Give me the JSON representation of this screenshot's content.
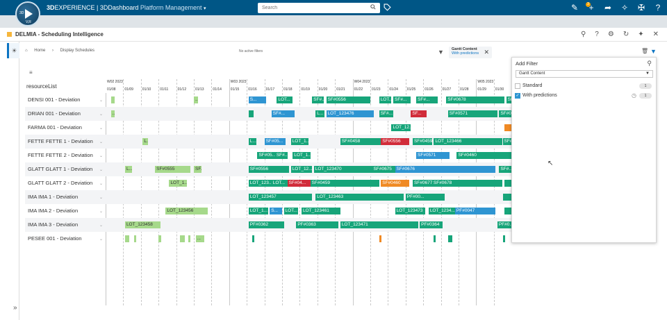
{
  "topbar": {
    "brand_prefix": "3D",
    "brand_experience": "EXPERIENCE",
    "brand_dashboard": " | 3DDashboard ",
    "app": "Platform Management",
    "search_placeholder": "Search",
    "notification_count": "3",
    "compass_top": "3D",
    "compass_bottom": "V,R"
  },
  "widget": {
    "title": "DELMIA - Scheduling Intelligence",
    "breadcrumb": [
      "Home",
      "Display Schedules"
    ],
    "no_filters": "No active filters",
    "filter_chip": {
      "title": "Gantt Content",
      "value": "With predictions"
    }
  },
  "gantt": {
    "resource_header": "resourceList",
    "weeks": [
      "W02 2023",
      "W03 2023",
      "W04 2023",
      "W05 2023"
    ],
    "days": [
      "01/08",
      "01/09",
      "01/10",
      "01/11",
      "01/12",
      "01/13",
      "01/14",
      "01/15",
      "01/16",
      "01/17",
      "01/18",
      "01/19",
      "01/20",
      "01/21",
      "01/22",
      "01/23",
      "01/24",
      "01/25",
      "01/26",
      "01/27",
      "01/28",
      "01/29",
      "01/30"
    ],
    "rows": [
      {
        "label": "DENSI 001 - Deviation",
        "bars": [
          {
            "s": 0.3,
            "w": 0.2,
            "c": "light",
            "t": ""
          },
          {
            "s": 5.0,
            "w": 0.25,
            "c": "light",
            "t": "..."
          },
          {
            "s": 8.1,
            "w": 1.0,
            "c": "blue",
            "t": "S..."
          },
          {
            "s": 9.7,
            "w": 0.9,
            "c": "teal",
            "t": "LOT..."
          },
          {
            "s": 11.7,
            "w": 0.65,
            "c": "teal",
            "t": "SF#..."
          },
          {
            "s": 12.5,
            "w": 2.5,
            "c": "teal",
            "t": "SF#0556"
          },
          {
            "s": 15.5,
            "w": 0.7,
            "c": "teal",
            "t": "LOT..."
          },
          {
            "s": 16.3,
            "w": 1.0,
            "c": "teal",
            "t": "SF#..."
          },
          {
            "s": 17.6,
            "w": 1.2,
            "c": "teal",
            "t": "SF#..."
          },
          {
            "s": 19.3,
            "w": 3.3,
            "c": "teal",
            "t": "SF#0678"
          },
          {
            "s": 22.7,
            "w": 0.9,
            "c": "teal",
            "t": "SF#..."
          }
        ]
      },
      {
        "label": "DRIAN 001 - Deviation",
        "bars": [
          {
            "s": 0.3,
            "w": 0.2,
            "c": "light",
            "t": "..."
          },
          {
            "s": 8.1,
            "w": 0.3,
            "c": "teal",
            "t": ""
          },
          {
            "s": 9.4,
            "w": 1.3,
            "c": "blue",
            "t": "SF#..."
          },
          {
            "s": 11.9,
            "w": 0.5,
            "c": "teal",
            "t": "L..."
          },
          {
            "s": 12.5,
            "w": 2.7,
            "c": "blue",
            "t": "LOT_123476"
          },
          {
            "s": 15.5,
            "w": 0.8,
            "c": "teal",
            "t": "SF#..."
          },
          {
            "s": 17.3,
            "w": 0.9,
            "c": "red",
            "t": "SF..."
          },
          {
            "s": 19.4,
            "w": 2.8,
            "c": "teal",
            "t": "SF#0571"
          },
          {
            "s": 22.3,
            "w": 0.8,
            "c": "teal",
            "t": "SF#0..."
          }
        ]
      },
      {
        "label": "FARMA 001 - Deviation",
        "bars": [
          {
            "s": 16.2,
            "w": 1.1,
            "c": "teal",
            "t": "LOT_12..."
          },
          {
            "s": 22.6,
            "w": 0.6,
            "c": "orange",
            "t": ""
          }
        ]
      },
      {
        "label": "FETTE FETTE 1 - Deviation",
        "bars": [
          {
            "s": 2.1,
            "w": 0.3,
            "c": "light",
            "t": "L..."
          },
          {
            "s": 8.1,
            "w": 0.45,
            "c": "teal",
            "t": "L..."
          },
          {
            "s": 9.0,
            "w": 1.2,
            "c": "blue",
            "t": "SF#05..."
          },
          {
            "s": 10.5,
            "w": 1.0,
            "c": "teal",
            "t": "LOT_1..."
          },
          {
            "s": 13.3,
            "w": 3.1,
            "c": "teal",
            "t": "SF#0458"
          },
          {
            "s": 15.6,
            "w": 1.6,
            "c": "red",
            "t": "SF#0556"
          },
          {
            "s": 17.4,
            "w": 1.1,
            "c": "teal",
            "t": "SF#0459"
          },
          {
            "s": 18.6,
            "w": 3.9,
            "c": "teal",
            "t": "LOT_123466"
          },
          {
            "s": 22.5,
            "w": 0.8,
            "c": "teal",
            "t": "SF#..."
          }
        ]
      },
      {
        "label": "FETTE FETTE 2 - Deviation",
        "bars": [
          {
            "s": 8.6,
            "w": 1.0,
            "c": "teal",
            "t": "SF#05..."
          },
          {
            "s": 9.6,
            "w": 0.7,
            "c": "teal",
            "t": "SF#..."
          },
          {
            "s": 10.6,
            "w": 1.0,
            "c": "teal",
            "t": "LOT_1..."
          },
          {
            "s": 17.6,
            "w": 1.9,
            "c": "blue",
            "t": "SF#0571"
          },
          {
            "s": 19.9,
            "w": 3.3,
            "c": "teal",
            "t": "SF#0460"
          }
        ]
      },
      {
        "label": "GLATT GLATT 1 - Deviation",
        "bars": [
          {
            "s": 1.1,
            "w": 0.4,
            "c": "light",
            "t": "L..."
          },
          {
            "s": 2.8,
            "w": 2.0,
            "c": "light",
            "t": "SF#0555"
          },
          {
            "s": 5.0,
            "w": 0.45,
            "c": "light",
            "t": "SF..."
          },
          {
            "s": 8.1,
            "w": 2.3,
            "c": "teal",
            "t": "SF#0556"
          },
          {
            "s": 10.5,
            "w": 1.2,
            "c": "teal",
            "t": "LOT_12..."
          },
          {
            "s": 11.8,
            "w": 3.3,
            "c": "teal",
            "t": "LOT_123470"
          },
          {
            "s": 15.1,
            "w": 1.3,
            "c": "teal",
            "t": "SF#0675"
          },
          {
            "s": 16.4,
            "w": 5.7,
            "c": "blue",
            "t": "SF#0676"
          },
          {
            "s": 22.3,
            "w": 0.9,
            "c": "teal",
            "t": "SF#..."
          }
        ]
      },
      {
        "label": "GLATT GLATT 2 - Deviation",
        "bars": [
          {
            "s": 3.6,
            "w": 1.0,
            "c": "light",
            "t": "LOT_1..."
          },
          {
            "s": 8.1,
            "w": 1.3,
            "c": "teal",
            "t": "LOT_123..."
          },
          {
            "s": 9.4,
            "w": 0.9,
            "c": "teal",
            "t": "LOT..."
          },
          {
            "s": 10.3,
            "w": 1.3,
            "c": "red",
            "t": "SF#04..."
          },
          {
            "s": 11.6,
            "w": 3.9,
            "c": "teal",
            "t": "SF#0459"
          },
          {
            "s": 15.6,
            "w": 1.6,
            "c": "orange",
            "t": "SF#0460"
          },
          {
            "s": 17.4,
            "w": 1.1,
            "c": "teal",
            "t": "SF#0677"
          },
          {
            "s": 18.5,
            "w": 4.0,
            "c": "teal",
            "t": "SF#0678"
          },
          {
            "s": 22.6,
            "w": 0.7,
            "c": "teal",
            "t": ""
          }
        ]
      },
      {
        "label": "IMA IMA 1 - Deviation",
        "bars": [
          {
            "s": 8.1,
            "w": 3.6,
            "c": "teal",
            "t": "LOT_123457"
          },
          {
            "s": 11.9,
            "w": 5.0,
            "c": "teal",
            "t": "LOT_123463"
          },
          {
            "s": 17.0,
            "w": 2.2,
            "c": "teal",
            "t": "PF#00..."
          },
          {
            "s": 22.5,
            "w": 0.7,
            "c": "teal",
            "t": ""
          }
        ]
      },
      {
        "label": "IMA IMA 2 - Deviation",
        "bars": [
          {
            "s": 3.4,
            "w": 2.4,
            "c": "light",
            "t": "LOT_123456"
          },
          {
            "s": 8.1,
            "w": 1.1,
            "c": "teal",
            "t": "LOT_1..."
          },
          {
            "s": 9.3,
            "w": 0.7,
            "c": "blue",
            "t": "S..."
          },
          {
            "s": 10.1,
            "w": 0.8,
            "c": "teal",
            "t": "LOT..."
          },
          {
            "s": 11.1,
            "w": 2.2,
            "c": "teal",
            "t": "LOT_123461"
          },
          {
            "s": 16.4,
            "w": 1.7,
            "c": "teal",
            "t": "LOT_123473"
          },
          {
            "s": 18.3,
            "w": 1.5,
            "c": "teal",
            "t": "LOT_1234..."
          },
          {
            "s": 19.8,
            "w": 2.3,
            "c": "blue",
            "t": "PF#0047"
          },
          {
            "s": 22.6,
            "w": 0.7,
            "c": "teal",
            "t": ""
          }
        ]
      },
      {
        "label": "IMA IMA 3 - Deviation",
        "bars": [
          {
            "s": 1.1,
            "w": 2.0,
            "c": "light",
            "t": "LOT_123458"
          },
          {
            "s": 8.1,
            "w": 2.0,
            "c": "teal",
            "t": "PF#0362"
          },
          {
            "s": 10.8,
            "w": 2.4,
            "c": "teal",
            "t": "PF#0363"
          },
          {
            "s": 13.3,
            "w": 4.4,
            "c": "teal",
            "t": "LOT_123471"
          },
          {
            "s": 17.8,
            "w": 1.3,
            "c": "teal",
            "t": "PF#0364"
          },
          {
            "s": 22.2,
            "w": 0.9,
            "c": "teal",
            "t": "PF#0..."
          }
        ]
      },
      {
        "label": "PESEE 001 - Deviation",
        "bars": [
          {
            "s": 1.1,
            "w": 0.25,
            "c": "light",
            "t": ""
          },
          {
            "s": 1.6,
            "w": 0.12,
            "c": "light",
            "t": ""
          },
          {
            "s": 3.0,
            "w": 0.15,
            "c": "light",
            "t": ""
          },
          {
            "s": 4.2,
            "w": 0.3,
            "c": "light",
            "t": ""
          },
          {
            "s": 4.7,
            "w": 0.12,
            "c": "light",
            "t": ""
          },
          {
            "s": 5.1,
            "w": 0.5,
            "c": "light",
            "t": "..."
          },
          {
            "s": 8.3,
            "w": 0.12,
            "c": "teal",
            "t": ""
          },
          {
            "s": 15.5,
            "w": 0.12,
            "c": "orange",
            "t": ""
          },
          {
            "s": 18.6,
            "w": 0.12,
            "c": "teal",
            "t": ""
          },
          {
            "s": 19.4,
            "w": 0.25,
            "c": "teal",
            "t": ""
          },
          {
            "s": 22.5,
            "w": 0.12,
            "c": "teal",
            "t": ""
          }
        ]
      }
    ]
  },
  "filter_panel": {
    "title": "Add Filter",
    "select_value": "Gantt Content",
    "items": [
      {
        "label": "Standard",
        "checked": false,
        "count": "1"
      },
      {
        "label": "With predictions",
        "checked": true,
        "count": "1"
      }
    ]
  }
}
